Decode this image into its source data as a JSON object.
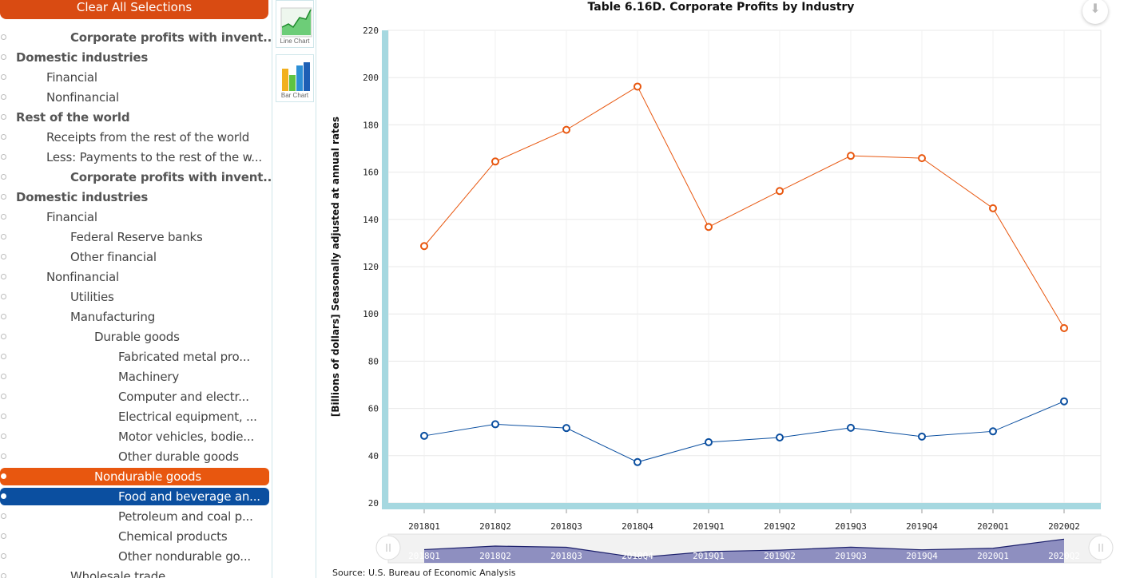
{
  "sidebar": {
    "clear_label": "Clear All Selections",
    "items": [
      {
        "label": "Corporate profits with invent...",
        "level": 2,
        "bold": true,
        "state": "none"
      },
      {
        "label": "Domestic industries",
        "level": 0,
        "bold": true,
        "state": "none"
      },
      {
        "label": "Financial",
        "level": 1,
        "bold": false,
        "state": "none"
      },
      {
        "label": "Nonfinancial",
        "level": 1,
        "bold": false,
        "state": "none"
      },
      {
        "label": "Rest of the world",
        "level": 0,
        "bold": true,
        "state": "none"
      },
      {
        "label": "Receipts from the rest of the world",
        "level": 1,
        "bold": false,
        "state": "none"
      },
      {
        "label": "Less: Payments to the rest of the w...",
        "level": 1,
        "bold": false,
        "state": "none"
      },
      {
        "label": "Corporate profits with invent...",
        "level": 2,
        "bold": true,
        "state": "none"
      },
      {
        "label": "Domestic industries",
        "level": 0,
        "bold": true,
        "state": "none"
      },
      {
        "label": "Financial",
        "level": 1,
        "bold": false,
        "state": "none"
      },
      {
        "label": "Federal Reserve banks",
        "level": 2,
        "bold": false,
        "state": "none"
      },
      {
        "label": "Other financial",
        "level": 2,
        "bold": false,
        "state": "none"
      },
      {
        "label": "Nonfinancial",
        "level": 1,
        "bold": false,
        "state": "none"
      },
      {
        "label": "Utilities",
        "level": 2,
        "bold": false,
        "state": "none"
      },
      {
        "label": "Manufacturing",
        "level": 2,
        "bold": false,
        "state": "none"
      },
      {
        "label": "Durable goods",
        "level": 3,
        "bold": false,
        "state": "none"
      },
      {
        "label": "Fabricated metal pro...",
        "level": 4,
        "bold": false,
        "state": "none"
      },
      {
        "label": "Machinery",
        "level": 4,
        "bold": false,
        "state": "none"
      },
      {
        "label": "Computer and electr...",
        "level": 4,
        "bold": false,
        "state": "none"
      },
      {
        "label": "Electrical equipment, ...",
        "level": 4,
        "bold": false,
        "state": "none"
      },
      {
        "label": "Motor vehicles, bodie...",
        "level": 4,
        "bold": false,
        "state": "none"
      },
      {
        "label": "Other durable goods",
        "level": 4,
        "bold": false,
        "state": "none"
      },
      {
        "label": "Nondurable goods",
        "level": 3,
        "bold": false,
        "state": "orange"
      },
      {
        "label": "Food and beverage an...",
        "level": 4,
        "bold": false,
        "state": "blue"
      },
      {
        "label": "Petroleum and coal p...",
        "level": 4,
        "bold": false,
        "state": "none"
      },
      {
        "label": "Chemical products",
        "level": 4,
        "bold": false,
        "state": "none"
      },
      {
        "label": "Other nondurable go...",
        "level": 4,
        "bold": false,
        "state": "none"
      },
      {
        "label": "Wholesale trade",
        "level": 2,
        "bold": false,
        "state": "none"
      }
    ]
  },
  "chart_types": {
    "line_label": "Line Chart",
    "bar_label": "Bar Chart"
  },
  "chart": {
    "source": "Source: U.S. Bureau of Economic Analysis",
    "download_icon": "download-icon",
    "colors": {
      "orange": "#e8570f",
      "blue": "#0b4fa0",
      "axis_bar": "#a6d8e0"
    }
  },
  "chart_data": {
    "type": "line",
    "title": "Table 6.16D. Corporate Profits by Industry",
    "xlabel": "",
    "ylabel": "[Billions of dollars] Seasonally adjusted at annual rates",
    "categories": [
      "2018Q1",
      "2018Q2",
      "2018Q3",
      "2018Q4",
      "2019Q1",
      "2019Q2",
      "2019Q3",
      "2019Q4",
      "2020Q1",
      "2020Q2"
    ],
    "ylim": [
      20,
      220
    ],
    "yticks": [
      20,
      40,
      60,
      80,
      100,
      120,
      140,
      160,
      180,
      200,
      220
    ],
    "grid": true,
    "series": [
      {
        "color": "#e8570f",
        "values": [
          128.7,
          164.5,
          177.9,
          196.2,
          136.8,
          152.0,
          166.9,
          165.9,
          144.7,
          94.0
        ]
      },
      {
        "color": "#0b4fa0",
        "values": [
          48.4,
          53.3,
          51.7,
          37.3,
          45.7,
          47.7,
          51.8,
          48.1,
          50.3,
          63.0
        ]
      }
    ]
  }
}
